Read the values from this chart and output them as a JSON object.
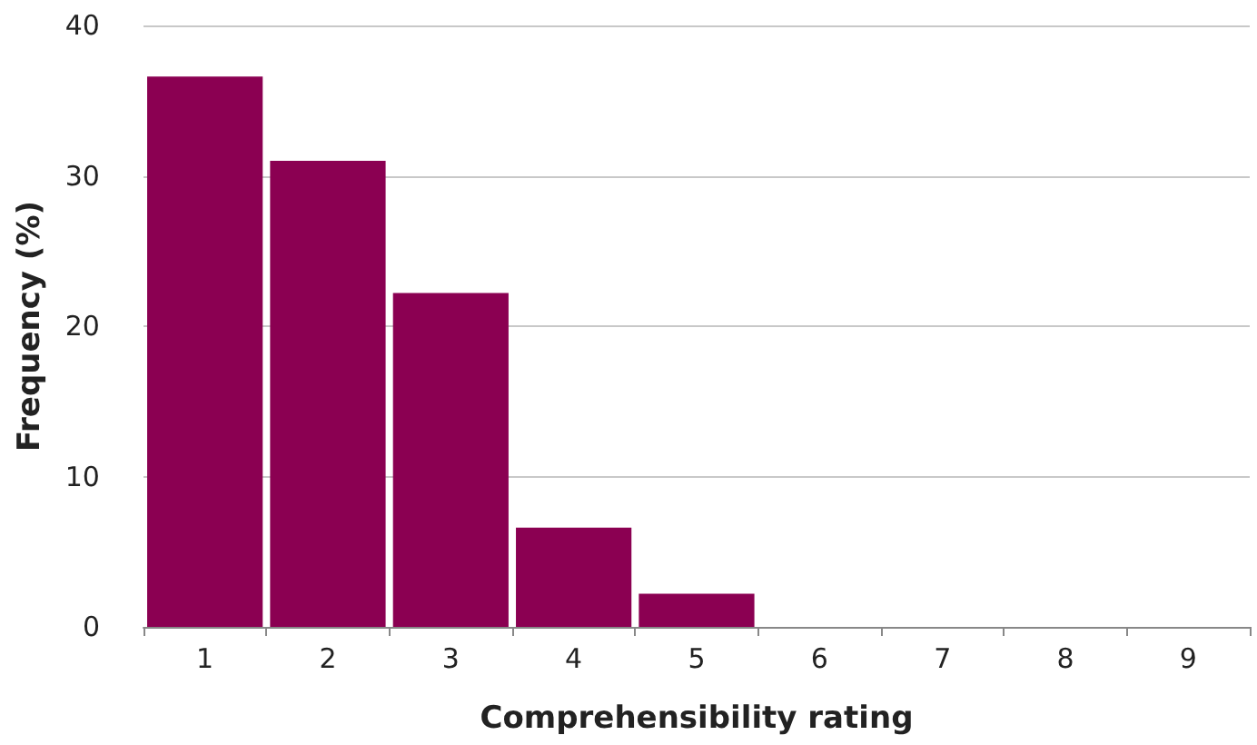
{
  "chart_data": {
    "type": "bar",
    "xlabel": "Comprehensibility rating",
    "ylabel": "Frequency (%)",
    "categories": [
      "1",
      "2",
      "3",
      "4",
      "5",
      "6",
      "7",
      "8",
      "9"
    ],
    "values": [
      36.6,
      31.0,
      22.2,
      6.6,
      2.2,
      0,
      0,
      0,
      0
    ],
    "color": "#8b0052",
    "ylim": [
      0,
      40
    ],
    "yticks": [
      0,
      10,
      20,
      30,
      40
    ],
    "grid": "y"
  }
}
